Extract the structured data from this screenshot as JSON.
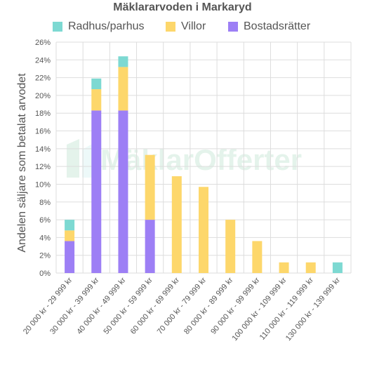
{
  "chart_data": {
    "type": "bar",
    "stacked": true,
    "title": "Mäklararvoden i Markaryd",
    "xlabel": "",
    "ylabel": "Andelen säljare som betalat arvodet",
    "ylim": [
      0,
      26
    ],
    "ytick_step": 2,
    "y_unit": "%",
    "grid": true,
    "legend_position": "top",
    "categories": [
      "20 000 kr - 29 999 kr",
      "30 000 kr - 39 999 kr",
      "40 000 kr - 49 999 kr",
      "50 000 kr - 59 999 kr",
      "60 000 kr - 69 999 kr",
      "70 000 kr - 79 999 kr",
      "80 000 kr - 89 999 kr",
      "90 000 kr - 99 999 kr",
      "100 000 kr - 109 999 kr",
      "110 000 kr - 119 999 kr",
      "130 000 kr - 139 999 kr"
    ],
    "series": [
      {
        "name": "Bostadsrätter",
        "color": "#9d7ff5",
        "values": [
          3.6,
          18.3,
          18.3,
          6.0,
          0,
          0,
          0,
          0,
          0,
          0,
          0
        ]
      },
      {
        "name": "Villor",
        "color": "#fdd76b",
        "values": [
          1.2,
          2.4,
          4.9,
          7.3,
          10.9,
          9.7,
          6.0,
          3.6,
          1.2,
          1.2,
          0
        ]
      },
      {
        "name": "Radhus/parhus",
        "color": "#7dd9d2",
        "values": [
          1.2,
          1.2,
          1.2,
          0,
          0,
          0,
          0,
          0,
          0,
          0,
          1.2
        ]
      }
    ],
    "legend_order": [
      "Radhus/parhus",
      "Villor",
      "Bostadsrätter"
    ]
  },
  "watermark": "MäklarOfferter"
}
